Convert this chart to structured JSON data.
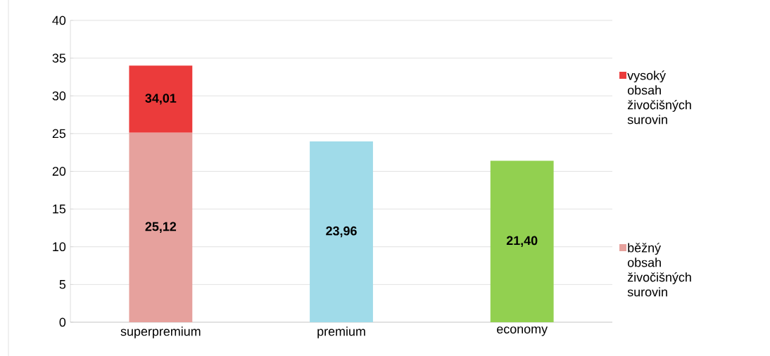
{
  "chart_data": {
    "type": "bar",
    "stacked": true,
    "categories": [
      "superpremium",
      "premium",
      "economy"
    ],
    "series": [
      {
        "name": "běžný obsah živočišných surovin",
        "color": "#e6a19d",
        "colors": [
          "#e6a19d",
          "#a0dbe9",
          "#92d050"
        ],
        "values": [
          25.12,
          23.96,
          21.4
        ],
        "value_labels": [
          "25,12",
          "23,96",
          "21,40"
        ]
      },
      {
        "name": "vysoký obsah živočišných surovin",
        "color": "#eb3b3b",
        "values": [
          8.89,
          null,
          null
        ]
      }
    ],
    "totals": [
      "34,01",
      null,
      null
    ],
    "ylim": [
      0,
      40
    ],
    "yticks": [
      0,
      5,
      10,
      15,
      20,
      25,
      30,
      35,
      40
    ],
    "grid": "y",
    "legend": "right"
  }
}
